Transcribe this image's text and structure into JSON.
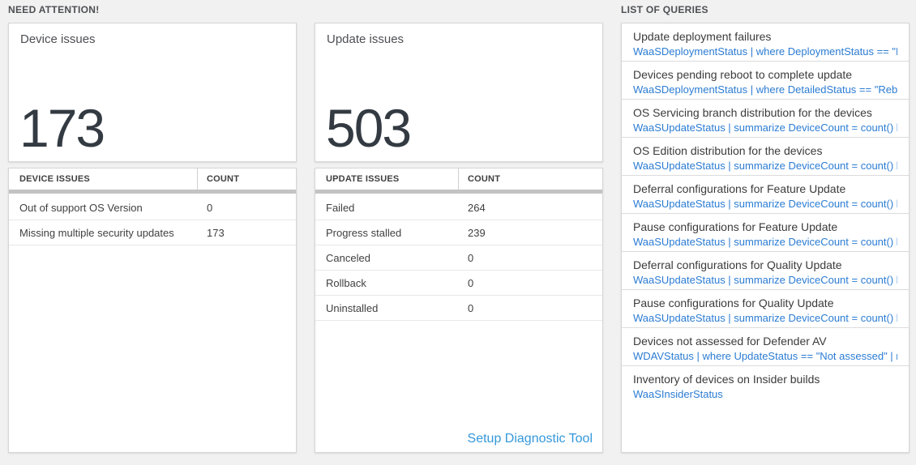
{
  "sections": {
    "need_attention_label": "NEED ATTENTION!",
    "queries_label": "LIST OF QUERIES"
  },
  "device_tile": {
    "title": "Device issues",
    "count": "173",
    "table": {
      "headers": [
        "DEVICE ISSUES",
        "COUNT"
      ],
      "rows": [
        {
          "label": "Out of support OS Version",
          "count": "0"
        },
        {
          "label": "Missing multiple security updates",
          "count": "173"
        }
      ]
    }
  },
  "update_tile": {
    "title": "Update issues",
    "count": "503",
    "table": {
      "headers": [
        "UPDATE ISSUES",
        "COUNT"
      ],
      "rows": [
        {
          "label": "Failed",
          "count": "264"
        },
        {
          "label": "Progress stalled",
          "count": "239"
        },
        {
          "label": "Canceled",
          "count": "0"
        },
        {
          "label": "Rollback",
          "count": "0"
        },
        {
          "label": "Uninstalled",
          "count": "0"
        }
      ]
    },
    "setup_link_label": "Setup Diagnostic Tool"
  },
  "queries": {
    "items": [
      {
        "title": "Update deployment failures",
        "query": "WaaSDeploymentStatus | where DeploymentStatus == \"Failed\" |..."
      },
      {
        "title": "Devices pending reboot to complete update",
        "query": "WaaSDeploymentStatus | where DetailedStatus == \"Reboot pend..."
      },
      {
        "title": "OS Servicing branch distribution for the devices",
        "query": "WaaSUpdateStatus | summarize DeviceCount = count() by OSSer..."
      },
      {
        "title": "OS Edition distribution for the devices",
        "query": "WaaSUpdateStatus | summarize DeviceCount = count() by OSEdit..."
      },
      {
        "title": "Deferral configurations for Feature Update",
        "query": "WaaSUpdateStatus | summarize DeviceCount = count() by Featur..."
      },
      {
        "title": "Pause configurations for Feature Update",
        "query": "WaaSUpdateStatus | summarize DeviceCount = count() by Featur..."
      },
      {
        "title": "Deferral configurations for Quality Update",
        "query": "WaaSUpdateStatus | summarize DeviceCount = count() by Qualit..."
      },
      {
        "title": "Pause configurations for Quality Update",
        "query": "WaaSUpdateStatus | summarize DeviceCount = count() by Qualit..."
      },
      {
        "title": "Devices not assessed for Defender AV",
        "query": "WDAVStatus | where UpdateStatus == \"Not assessed\" | render ta..."
      },
      {
        "title": "Inventory of devices on Insider builds",
        "query": "WaaSInsiderStatus"
      }
    ]
  },
  "colors": {
    "page_background": "#f1f1f1",
    "tile_background": "#ffffff",
    "tile_border": "#d6d6d6",
    "big_number_text": "#333a42",
    "query_link_blue": "#2b7cd3",
    "setup_link_blue": "#3498db",
    "table_scrollbar_gray": "#c3c3c3"
  }
}
